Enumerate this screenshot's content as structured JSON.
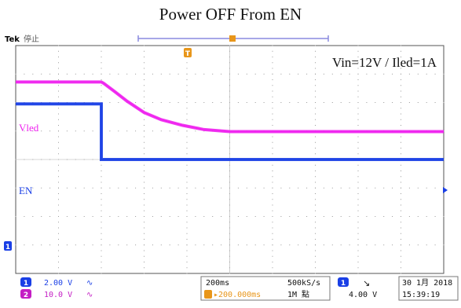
{
  "header": {
    "title": "Power OFF From EN"
  },
  "scope": {
    "brand": "Tek",
    "state": "停止",
    "annotation": "Vin=12V / Iled=1A",
    "trigger_marker": "T",
    "ch1_marker": "1"
  },
  "chart_data": {
    "type": "line",
    "title": "Power OFF From EN",
    "annotation": "Vin=12V / Iled=1A",
    "xlabel": "",
    "ylabel": "",
    "timebase": "200ms",
    "grid": true,
    "series": [
      {
        "name": "Vled",
        "channel": 2,
        "color": "#ee22ee",
        "scale": "10.0 V",
        "x_div": [
          0.0,
          2.0,
          2.05,
          2.3,
          2.6,
          3.0,
          3.4,
          3.9,
          4.4,
          5.0,
          6.0,
          7.0,
          8.0,
          9.0,
          10.0
        ],
        "y_div": [
          2.72,
          2.72,
          2.68,
          2.4,
          2.05,
          1.65,
          1.4,
          1.2,
          1.05,
          0.98,
          0.98,
          0.98,
          0.98,
          0.98,
          0.98
        ]
      },
      {
        "name": "EN",
        "channel": 1,
        "color": "#1a3fe6",
        "scale": "2.00 V",
        "x_div": [
          0.0,
          2.0,
          2.0,
          10.0
        ],
        "y_div": [
          1.95,
          1.95,
          0.0,
          0.0
        ]
      }
    ]
  },
  "status_bar": {
    "ch1": {
      "num": "1",
      "scale": "2.00 V",
      "bw": "∿"
    },
    "ch2": {
      "num": "2",
      "scale": "10.0 V",
      "bw": "∿"
    },
    "horizontal": {
      "timebase": "200ms",
      "delay": "▸200.000ms"
    },
    "acquisition": {
      "rate": "500kS/s",
      "length": "1M 點"
    },
    "trigger": {
      "source": "1",
      "slope": "↘",
      "level": "4.00 V"
    },
    "datetime": {
      "date": "30 1月 2018",
      "time": "15:39:19"
    }
  }
}
